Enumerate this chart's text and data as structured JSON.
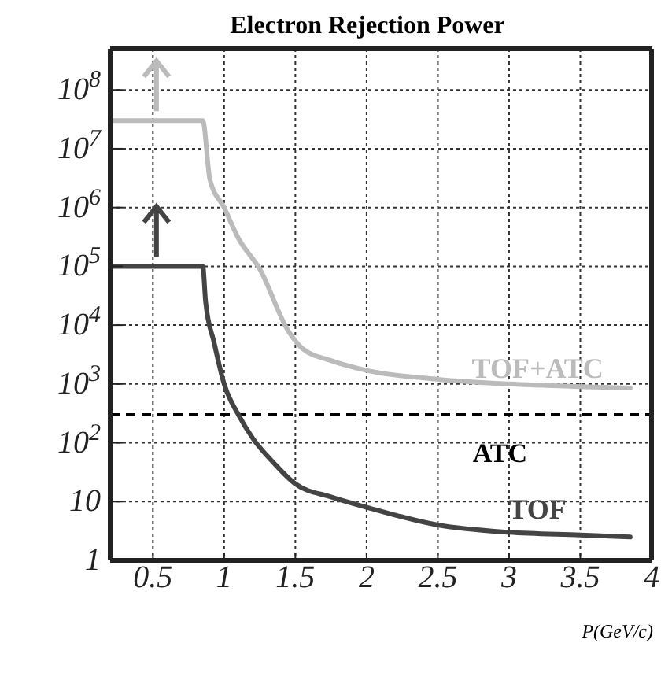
{
  "chart_data": {
    "type": "line",
    "title": "Electron Rejection Power",
    "xlabel": "P(GeV/c)",
    "log": "y",
    "grid": true,
    "marker": "none",
    "line_style": "solid",
    "xlim": [
      0.2,
      4
    ],
    "xticks": [
      0.5,
      1,
      1.5,
      2,
      2.5,
      3,
      3.5,
      4
    ],
    "ylim": [
      1,
      500000000
    ],
    "yticks": [
      1,
      10,
      {
        "value": 100,
        "label": "10$^{2}$"
      },
      {
        "value": 1000,
        "label": "10$^{3}$"
      },
      {
        "value": 10000,
        "label": "10$^{4}$"
      },
      {
        "value": 100000,
        "label": "10$^{5}$"
      },
      {
        "value": 1000000,
        "label": "10$^{6}$"
      },
      {
        "value": 10000000,
        "label": "10$^{7}$"
      },
      {
        "value": 100000000,
        "label": "10$^{8}$"
      }
    ],
    "series": [
      {
        "color": "#bbbbbb",
        "x": [
          0.2,
          0.85,
          0.9,
          1.0,
          1.1,
          1.25,
          1.45,
          1.55,
          1.75,
          2,
          2.5,
          3,
          3.5,
          3.85
        ],
        "values": [
          30000000,
          30000000,
          3000000,
          1000000,
          300000,
          90000,
          8000,
          4000,
          2500,
          1700,
          1200,
          1000,
          900,
          850
        ]
      },
      {
        "color": "#444444",
        "x": [
          0.2,
          0.85,
          0.87,
          0.93,
          1.0,
          1.1,
          1.2,
          1.35,
          1.5,
          1.75,
          2,
          2.5,
          3,
          3.5,
          3.85
        ],
        "values": [
          100000,
          100000,
          25000,
          5000,
          1000,
          300,
          120,
          45,
          20,
          12,
          8,
          4,
          3,
          2.7,
          2.5
        ]
      }
    ],
    "ref_lines": [
      {
        "axis": "y",
        "value": 300,
        "label": "ATC",
        "color": "#000000",
        "line_style": "dashed"
      }
    ],
    "annotations": [
      {
        "text": "TOF+ATC",
        "x": 3.2,
        "y": 1000
      },
      {
        "text": "TOF",
        "x": 3.2,
        "y": 4
      }
    ]
  }
}
